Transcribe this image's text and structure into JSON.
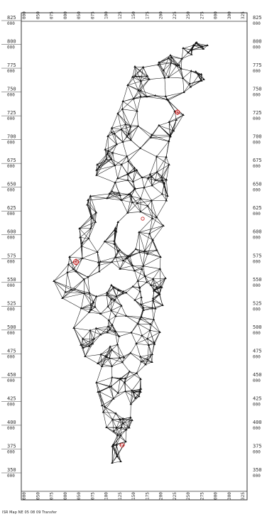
{
  "map": {
    "y_ticks": [
      {
        "value": "825",
        "sub": "000"
      },
      {
        "value": "800",
        "sub": "000"
      },
      {
        "value": "775",
        "sub": "000"
      },
      {
        "value": "750",
        "sub": "000"
      },
      {
        "value": "725",
        "sub": "000"
      },
      {
        "value": "700",
        "sub": "000"
      },
      {
        "value": "675",
        "sub": "000"
      },
      {
        "value": "650",
        "sub": "000"
      },
      {
        "value": "625",
        "sub": "000"
      },
      {
        "value": "600",
        "sub": "000"
      },
      {
        "value": "575",
        "sub": "000"
      },
      {
        "value": "550",
        "sub": "000"
      },
      {
        "value": "525",
        "sub": "000"
      },
      {
        "value": "500",
        "sub": "000"
      },
      {
        "value": "475",
        "sub": "000"
      },
      {
        "value": "450",
        "sub": "000"
      },
      {
        "value": "425",
        "sub": "000"
      },
      {
        "value": "400",
        "sub": "000"
      },
      {
        "value": "375",
        "sub": "000"
      },
      {
        "value": "350",
        "sub": "000"
      }
    ],
    "x_ticks": [
      "000",
      "050",
      "075",
      "000",
      "050",
      "075",
      "100",
      "125",
      "150",
      "175",
      "200",
      "225",
      "250",
      "275",
      "000",
      "300",
      "325"
    ],
    "caption": "ISR Map NE 05 08 09 Transfer",
    "network_color": "#111111",
    "marker_color": "#cc2222"
  }
}
